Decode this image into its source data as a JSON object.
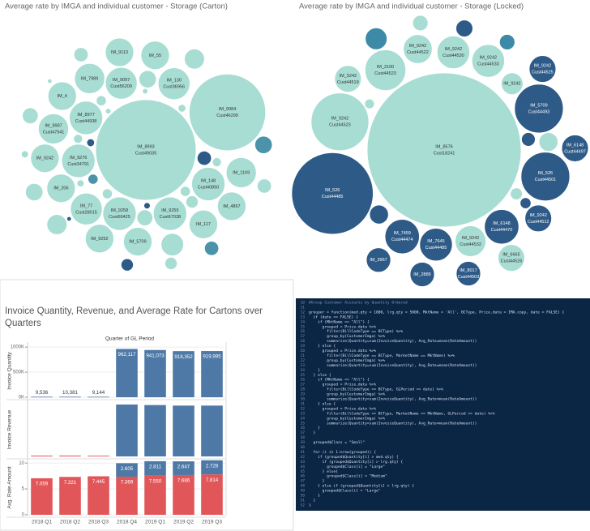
{
  "chart_data": [
    {
      "type": "bubble",
      "title": "Average rate by IMGA and individual customer - Storage (Carton)",
      "bubbles": [
        {
          "label": "IM_8993",
          "customer": "Cust49035",
          "value": 100,
          "color": "#a8ddd3"
        },
        {
          "label": "IM_9084",
          "customer": "Cust46299",
          "value": 58,
          "color": "#a8ddd3"
        },
        {
          "label": "IM_9276",
          "customer": "Cust34791",
          "value": 11,
          "color": "#a8ddd3"
        },
        {
          "label": "IM_9097",
          "customer": "Cust56209",
          "value": 10,
          "color": "#a8ddd3"
        },
        {
          "label": "IM_8987",
          "customer": "Cust47941",
          "value": 9,
          "color": "#a8ddd3"
        },
        {
          "label": "IM_206",
          "value": 8,
          "color": "#a8ddd3"
        },
        {
          "label": "IM_117",
          "value": 8,
          "color": "#a8ddd3"
        },
        {
          "label": "IM_5709",
          "value": 8,
          "color": "#a8ddd3"
        },
        {
          "label": "IM_130",
          "customer": "Cust36956",
          "value": 10,
          "color": "#a8ddd3"
        },
        {
          "label": "IM_8977",
          "customer": "Cust44938",
          "value": 11,
          "color": "#a8ddd3"
        },
        {
          "label": "IM_77",
          "customer": "Cust28015",
          "value": 10,
          "color": "#a8ddd3"
        },
        {
          "label": "IM_9242",
          "value": 8,
          "color": "#a8ddd3"
        },
        {
          "label": "IM_4",
          "value": 8,
          "color": "#a8ddd3"
        },
        {
          "label": "IM_55",
          "value": 8,
          "color": "#a8ddd3"
        },
        {
          "label": "IM_7989",
          "value": 9,
          "color": "#a8ddd3"
        },
        {
          "label": "IM_148",
          "customer": "Cust40850",
          "value": 11,
          "color": "#a8ddd3"
        },
        {
          "label": "IM_4867",
          "value": 8,
          "color": "#a8ddd3"
        },
        {
          "label": "IM_1169",
          "value": 9,
          "color": "#a8ddd3"
        },
        {
          "label": "IM_9255",
          "customer": "Cust67038",
          "value": 11,
          "color": "#a8ddd3"
        },
        {
          "label": "IM_9292",
          "value": 8,
          "color": "#a8ddd3"
        },
        {
          "label": "IM_9258",
          "customer": "Cust69425",
          "value": 11,
          "color": "#a8ddd3"
        },
        {
          "label": "IM_9113",
          "value": 8,
          "color": "#a8ddd3"
        },
        {
          "label": null,
          "value": 5,
          "color": "#a8ddd3"
        },
        {
          "label": null,
          "value": 4,
          "color": "#a8ddd3"
        },
        {
          "label": null,
          "value": 4,
          "color": "#a8ddd3"
        },
        {
          "label": null,
          "value": 3,
          "color": "#a8ddd3"
        },
        {
          "label": null,
          "value": 3,
          "color": "#4a93a9"
        },
        {
          "label": null,
          "value": 3,
          "color": "#a8ddd3"
        },
        {
          "label": null,
          "value": 2.5,
          "color": "#a8ddd3"
        },
        {
          "label": null,
          "value": 2.5,
          "color": "#a8ddd3"
        },
        {
          "label": null,
          "value": 2,
          "color": "#2e5a87"
        },
        {
          "label": null,
          "value": 2,
          "color": "#a8ddd3"
        },
        {
          "label": null,
          "value": 2,
          "color": "#a8ddd3"
        },
        {
          "label": null,
          "value": 2,
          "color": "#4a93a9"
        },
        {
          "label": null,
          "value": 1.5,
          "color": "#a8ddd3"
        },
        {
          "label": null,
          "value": 1.5,
          "color": "#a8ddd3"
        },
        {
          "label": null,
          "value": 1.5,
          "color": "#2e5a87"
        },
        {
          "label": null,
          "value": 1,
          "color": "#a8ddd3"
        },
        {
          "label": null,
          "value": 1,
          "color": "#a8ddd3"
        },
        {
          "label": null,
          "value": 1,
          "color": "#4a93a9"
        },
        {
          "label": null,
          "value": 1,
          "color": "#a8ddd3"
        },
        {
          "label": null,
          "value": 0.8,
          "color": "#a8ddd3"
        },
        {
          "label": null,
          "value": 0.8,
          "color": "#a8ddd3"
        },
        {
          "label": null,
          "value": 0.6,
          "color": "#2e5a87"
        },
        {
          "label": null,
          "value": 0.6,
          "color": "#a8ddd3"
        },
        {
          "label": null,
          "value": 0.5,
          "color": "#a8ddd3"
        },
        {
          "label": null,
          "value": 0.5,
          "color": "#a8ddd3"
        },
        {
          "label": null,
          "value": 0.4,
          "color": "#2e5a87"
        },
        {
          "label": null,
          "value": 0.3,
          "color": "#a8ddd3"
        },
        {
          "label": null,
          "value": 0.3,
          "color": "#a8ddd3"
        },
        {
          "label": null,
          "value": 0.2,
          "color": "#2e5a87"
        },
        {
          "label": null,
          "value": 0.2,
          "color": "#a8ddd3"
        }
      ]
    },
    {
      "type": "bubble",
      "title": "Average rate by IMGA and individual customer - Storage (Locked)",
      "bubbles": [
        {
          "label": "IM_8576",
          "customer": "Cust18241",
          "value": 100,
          "color": "#a8ddd3"
        },
        {
          "label": "IM_526",
          "customer": "Cust44485",
          "value": 28,
          "color": "#2e5a87"
        },
        {
          "label": "IM_9242",
          "customer": "Cust44523",
          "value": 14,
          "color": "#a8ddd3"
        },
        {
          "label": "IM_5709",
          "customer": "Cust44493",
          "value": 10,
          "color": "#2e5a87"
        },
        {
          "label": "IM_526",
          "customer": "Cust44501",
          "value": 10,
          "color": "#2e5a87"
        },
        {
          "label": "IM_2100",
          "customer": "Cust44523",
          "value": 7,
          "color": "#a8ddd3"
        },
        {
          "label": "IM_6148",
          "customer": "Cust44470",
          "value": 5,
          "color": "#2e5a87"
        },
        {
          "label": "IM_7645",
          "customer": "Cust44485",
          "value": 4.5,
          "color": "#2e5a87"
        },
        {
          "label": "IM_7459",
          "customer": "Cust44474",
          "value": 5,
          "color": "#2e5a87"
        },
        {
          "label": "IM_9242",
          "customer": "Cust44512",
          "value": 3,
          "color": "#2e5a87"
        },
        {
          "label": "IM_9242",
          "value": 2,
          "color": "#a8ddd3"
        },
        {
          "label": "IM_5242",
          "customer": "Cust44519",
          "value": 3,
          "color": "#a8ddd3"
        },
        {
          "label": "IM_8017",
          "customer": "Cust44503",
          "value": 2.5,
          "color": "#2e5a87"
        },
        {
          "label": "IM_2889",
          "value": 2.5,
          "color": "#2e5a87"
        },
        {
          "label": "IM_3967",
          "value": 2.5,
          "color": "#2e5a87"
        },
        {
          "label": "IM_9242",
          "customer": "Cust44525",
          "value": 3,
          "color": "#2e5a87"
        },
        {
          "label": "IM_6148",
          "customer": "Cust44497",
          "value": 3,
          "color": "#2e5a87"
        },
        {
          "label": "IM_9242",
          "customer": "Cust44522",
          "value": 3.5,
          "color": "#a8ddd3"
        },
        {
          "label": "IM_6665",
          "customer": "Cust44526",
          "value": 3,
          "color": "#a8ddd3"
        },
        {
          "label": "IM_9242",
          "customer": "Cust44532",
          "value": 4,
          "color": "#a8ddd3"
        },
        {
          "label": "IM_9242",
          "customer": "Cust44530",
          "value": 4.5,
          "color": "#a8ddd3"
        },
        {
          "label": "IM_9242",
          "customer": "Cust44533",
          "value": 4.5,
          "color": "#a8ddd3"
        },
        {
          "label": null,
          "value": 2,
          "color": "#3d8aa8"
        },
        {
          "label": null,
          "value": 1.5,
          "color": "#2e5a87"
        },
        {
          "label": null,
          "value": 1.5,
          "color": "#a8ddd3"
        },
        {
          "label": null,
          "value": 1.2,
          "color": "#2e5a87"
        },
        {
          "label": null,
          "value": 1,
          "color": "#3d8aa8"
        },
        {
          "label": null,
          "value": 1,
          "color": "#a8ddd3"
        },
        {
          "label": null,
          "value": 0.8,
          "color": "#2e5a87"
        },
        {
          "label": null,
          "value": 0.6,
          "color": "#a8ddd3"
        },
        {
          "label": null,
          "value": 0.5,
          "color": "#2e5a87"
        },
        {
          "label": null,
          "value": 0.4,
          "color": "#a8ddd3"
        }
      ]
    },
    {
      "type": "bar",
      "title": "Invoice Quantity, Revenue, and Average Rate for Cartons over Quarters",
      "x_header": "Quarter of GL Period",
      "categories": [
        "2018 Q1",
        "2018 Q2",
        "2018 Q3",
        "2018 Q4",
        "2019 Q1",
        "2019 Q2",
        "2019 Q3"
      ],
      "panels": [
        {
          "ylabel": "Invoice Quantity",
          "ylim": [
            0,
            1050000
          ],
          "yticks": [
            {
              "value": 0,
              "label": "0K"
            },
            {
              "value": 500000,
              "label": "500K"
            },
            {
              "value": 1000000,
              "label": "1000K"
            }
          ],
          "series": [
            {
              "color": "#4e79a7",
              "values": [
                9536,
                10381,
                9144,
                962117,
                941073,
                918352,
                919995
              ],
              "value_labels": [
                "9,536",
                "10,381",
                "9,144",
                "962,117",
                "941,073",
                "918,352",
                "919,995"
              ]
            }
          ]
        },
        {
          "ylabel": "Invoice Revenue",
          "ylim": [
            0,
            100
          ],
          "series": [
            {
              "color": "#e15759",
              "values": [
                1.5,
                1.6,
                1.4,
                null,
                null,
                null,
                null
              ]
            },
            {
              "color": "#4e79a7",
              "values": [
                null,
                null,
                null,
                97,
                96,
                95,
                95
              ]
            }
          ]
        },
        {
          "ylabel": "Avg. Rate Amount",
          "ylim": [
            0,
            10.5
          ],
          "yticks": [
            0,
            5,
            10
          ],
          "series": [
            {
              "color": "#e15759",
              "values": [
                7.059,
                7.321,
                7.445,
                7.369,
                7.55,
                7.686,
                7.814
              ],
              "value_labels": [
                "7.059",
                "7.321",
                "7.445",
                "7.369",
                "7.550",
                "7.686",
                "7.814"
              ]
            },
            {
              "color": "#4e79a7",
              "values": [
                null,
                null,
                null,
                2.605,
                2.811,
                2.647,
                2.728
              ],
              "value_labels": [
                null,
                null,
                null,
                "2.605",
                "2.811",
                "2.647",
                "2.728"
              ]
            }
          ]
        }
      ]
    }
  ],
  "code_panel": {
    "line_numbers": [
      10,
      11,
      12,
      13,
      14,
      15,
      16,
      17,
      18,
      19,
      20,
      21,
      22,
      23,
      24,
      25,
      26,
      27,
      28,
      29,
      30,
      31,
      32,
      33,
      34,
      35,
      36,
      37,
      38,
      39,
      40,
      41,
      42,
      43,
      44,
      45,
      46,
      47,
      48,
      49,
      50,
      51,
      52
    ],
    "lines": [
      "#Group Customer Accounts by Quantity Ordered",
      "",
      "grouper = function(med.qty = 1000, lrg.qty = 5000, MktName = 'All', BCType, Price.data = IMA.copy, date = FALSE) {",
      "  if (date == FALSE) {",
      "    if (MktName == \"All\") {",
      "      grouped = Price.data %>%",
      "        filter(BillCodeType == BCType) %>%",
      "        group_by(CustomerImga) %>%",
      "        summarize(Quantity=sum(InvoiceQuantity), Avg_Rate=mean(RateAmount))",
      "    } else {",
      "      grouped = Price.data %>%",
      "        filter(BillCodeType == BCType, MarketName == MktName) %>%",
      "        group_by(CustomerImga) %>%",
      "        summarize(Quantity=sum(InvoiceQuantity), Avg_Rate=mean(RateAmount))",
      "    }",
      "  } else {",
      "    if (MktName == \"All\") {",
      "      grouped = Price.data %>%",
      "        filter(BillCodeType == BCType, GLPeriod == date) %>%",
      "        group_by(CustomerImga) %>%",
      "        summarize(Quantity=sum(InvoiceQuantity), Avg_Rate=mean(RateAmount))",
      "    } else {",
      "      grouped = Price.data %>%",
      "        filter(BillCodeType == BCType, MarketName == MktName, GLPeriod == date) %>%",
      "        group_by(CustomerImga) %>%",
      "        summarize(Quantity=sum(InvoiceQuantity), Avg_Rate=mean(RateAmount))",
      "    }",
      "  }",
      "",
      "  grouped$Class = \"Small\"",
      "",
      "  for (i in 1:nrow(grouped)) {",
      "    if (grouped$Quantity[i] > med.qty) {",
      "      if (grouped$Quantity[i] > lrg.qty) {",
      "        grouped$Class[i] = \"Large\"",
      "      } else{",
      "        grouped$Class[i] = \"Medium\"",
      "      }",
      "    } else if (grouped$Quantity[i] > lrg.qty) {",
      "      grouped$Class[i] = \"Large\"",
      "    }",
      "  }",
      "}"
    ]
  }
}
